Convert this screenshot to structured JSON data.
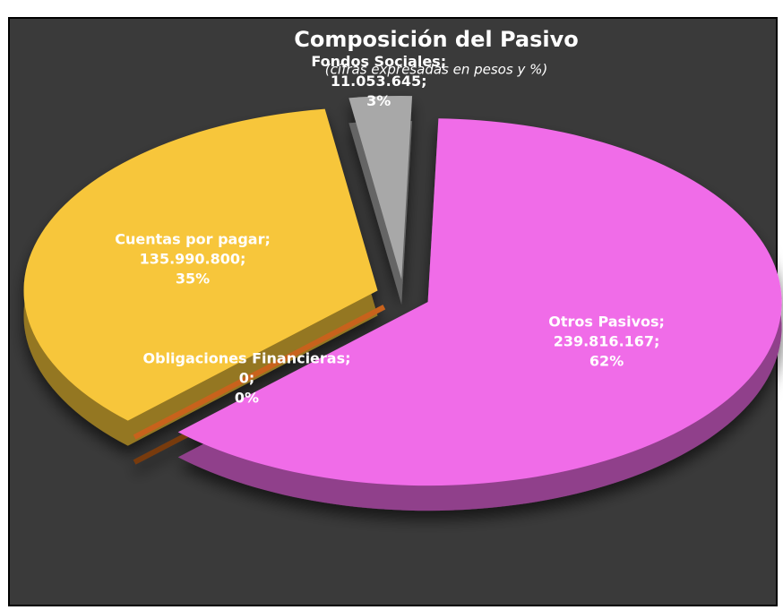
{
  "chart_data": {
    "type": "pie",
    "title": "Composición del Pasivo",
    "subtitle": "(cifras expresadas en pesos y %)",
    "categories": [
      "Otros Pasivos",
      "Obligaciones Financieras",
      "Cuentas por pagar",
      "Fondos Sociales"
    ],
    "values": [
      239816167,
      0,
      135990800,
      11053645
    ],
    "value_labels": [
      "239.816.167",
      "0",
      "135.990.800",
      "11.053.645"
    ],
    "percent_labels": [
      "62%",
      "0%",
      "35%",
      "3%"
    ],
    "label_separator": ";",
    "colors": [
      "#f06ce8",
      "#c8621c",
      "#f7c63a",
      "#a8a8a8"
    ]
  }
}
